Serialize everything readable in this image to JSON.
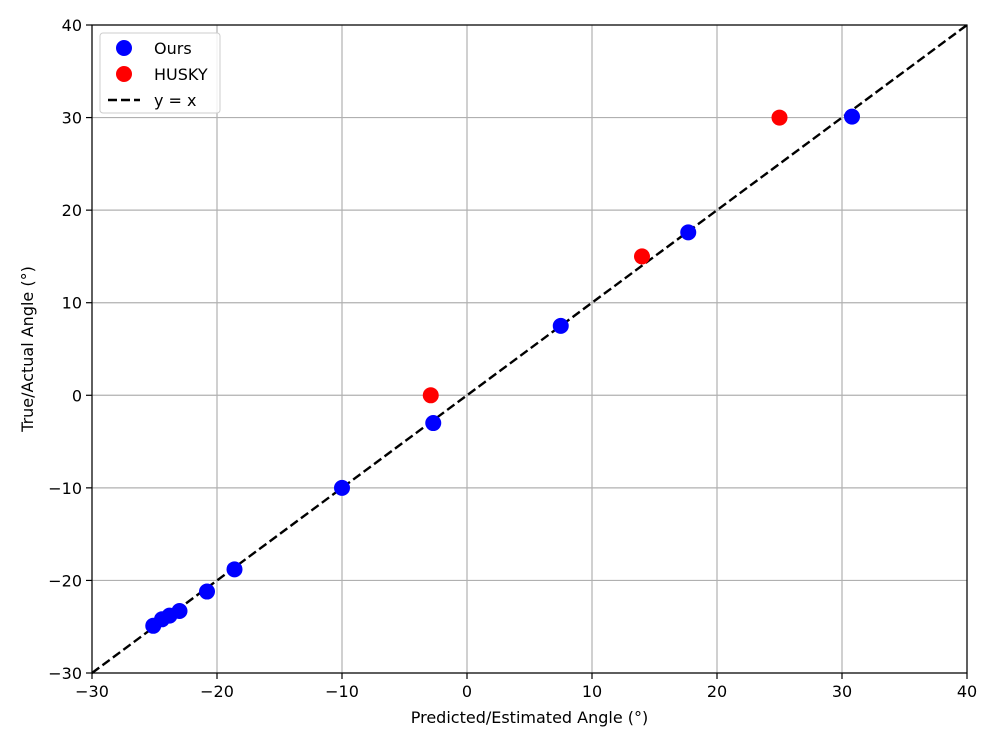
{
  "chart_data": {
    "type": "scatter",
    "title": "",
    "xlabel": "Predicted/Estimated Angle (°)",
    "ylabel": "True/Actual Angle (°)",
    "xlim": [
      -30,
      40
    ],
    "ylim": [
      -30,
      40
    ],
    "xticks": [
      -30,
      -20,
      -10,
      0,
      10,
      20,
      30,
      40
    ],
    "yticks": [
      -30,
      -20,
      -10,
      0,
      10,
      20,
      30,
      40
    ],
    "grid": true,
    "legend_position": "top-left",
    "series": [
      {
        "name": "Ours",
        "color": "#0000ff",
        "marker": "circle",
        "points": [
          {
            "x": 30.8,
            "y": 30.1
          },
          {
            "x": 17.7,
            "y": 17.6
          },
          {
            "x": 7.5,
            "y": 7.5
          },
          {
            "x": -2.7,
            "y": -3.0
          },
          {
            "x": -10.0,
            "y": -10.0
          },
          {
            "x": -18.6,
            "y": -18.8
          },
          {
            "x": -20.8,
            "y": -21.2
          },
          {
            "x": -23.0,
            "y": -23.3
          },
          {
            "x": -23.8,
            "y": -23.8
          },
          {
            "x": -24.4,
            "y": -24.2
          },
          {
            "x": -25.1,
            "y": -24.9
          }
        ]
      },
      {
        "name": "HUSKY",
        "color": "#ff0000",
        "marker": "circle",
        "points": [
          {
            "x": 25.0,
            "y": 30.0
          },
          {
            "x": 14.0,
            "y": 15.0
          },
          {
            "x": -2.9,
            "y": 0.0
          }
        ]
      }
    ],
    "reference_line": {
      "name": "y = x",
      "color": "#000000",
      "style": "dashed",
      "from": [
        -30,
        -30
      ],
      "to": [
        40,
        40
      ]
    }
  }
}
